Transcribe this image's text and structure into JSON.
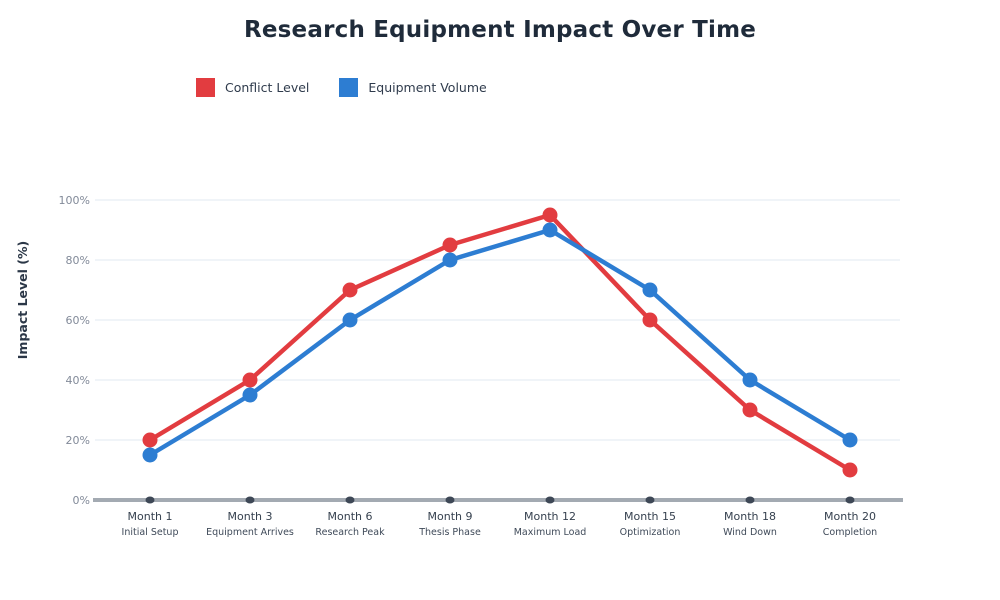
{
  "title": "Research Equipment Impact Over Time",
  "legend": [
    {
      "label": "Conflict Level",
      "color": "#e23c40"
    },
    {
      "label": "Equipment Volume",
      "color": "#2d7dd2"
    }
  ],
  "colors": {
    "title_text": "#1f2b3a",
    "axis_line": "#a3aab2",
    "tick_dot": "#3e4856",
    "gridline": "#e8edf3",
    "ytick_text": "#828a99",
    "xtick_text": "#36414f",
    "xsub_text": "#3f4a59",
    "ylabel_text": "#2b3747"
  },
  "chart_data": {
    "type": "line",
    "title": "Research Equipment Impact Over Time",
    "ylabel": "Impact Level (%)",
    "xlabel": "",
    "ylim": [
      0,
      100
    ],
    "yticks": [
      0,
      20,
      40,
      60,
      80,
      100
    ],
    "ytick_suffix": "%",
    "grid": true,
    "legend_position": "top-left",
    "categories": [
      {
        "label": "Month 1",
        "sublabel": "Initial Setup"
      },
      {
        "label": "Month 3",
        "sublabel": "Equipment Arrives"
      },
      {
        "label": "Month 6",
        "sublabel": "Research Peak"
      },
      {
        "label": "Month 9",
        "sublabel": "Thesis Phase"
      },
      {
        "label": "Month 12",
        "sublabel": "Maximum Load"
      },
      {
        "label": "Month 15",
        "sublabel": "Optimization"
      },
      {
        "label": "Month 18",
        "sublabel": "Wind Down"
      },
      {
        "label": "Month 20",
        "sublabel": "Completion"
      }
    ],
    "series": [
      {
        "name": "Conflict Level",
        "color": "#e23c40",
        "values": [
          20,
          40,
          70,
          85,
          95,
          60,
          30,
          10
        ]
      },
      {
        "name": "Equipment Volume",
        "color": "#2d7dd2",
        "values": [
          15,
          35,
          60,
          80,
          90,
          70,
          40,
          20
        ]
      }
    ]
  }
}
